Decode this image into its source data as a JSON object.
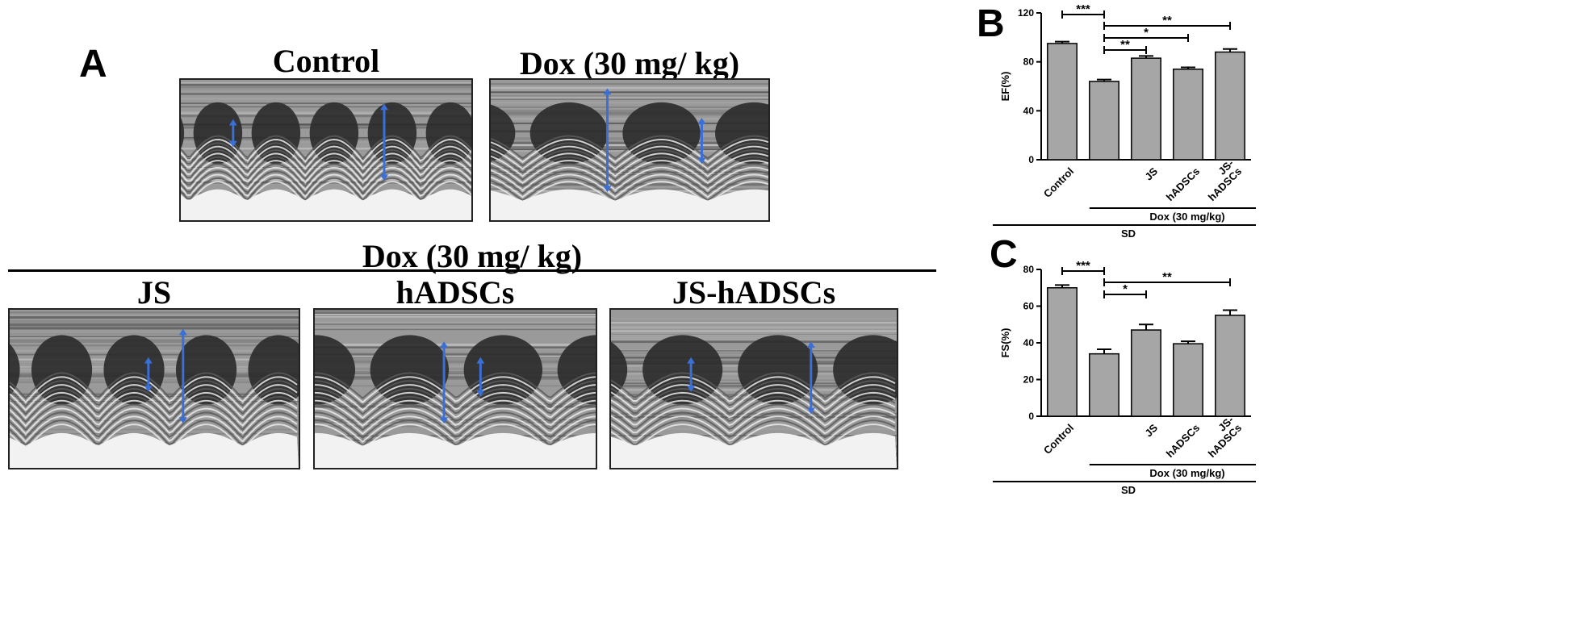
{
  "panelA": {
    "letter": "A",
    "top_titles": [
      "Control",
      "Dox (30 mg/ kg)"
    ],
    "group_title": "Dox (30 mg/ kg)",
    "bottom_titles": [
      "JS",
      "hADSCs",
      "JS-hADSCs"
    ]
  },
  "colors": {
    "arrow": "#3a6fd8",
    "bar": "#a6a6a6"
  },
  "chart_data": [
    {
      "panel": "B",
      "type": "bar",
      "ylabel": "EF(%)",
      "ylim": [
        0,
        120
      ],
      "yticks": [
        0,
        40,
        80,
        120
      ],
      "categories": [
        "Control",
        "",
        "JS",
        "hADSCs",
        "JS-\nhADSCs"
      ],
      "values": [
        95,
        64,
        83,
        74,
        88
      ],
      "errors": [
        1.5,
        1.5,
        1.8,
        1.5,
        2.5
      ],
      "group_label_1": "Dox (30 mg/kg)",
      "group_label_2": "SD",
      "significance": [
        {
          "from": 0,
          "to": 1,
          "label": "***"
        },
        {
          "from": 1,
          "to": 4,
          "label": "**"
        },
        {
          "from": 1,
          "to": 3,
          "label": "*"
        },
        {
          "from": 1,
          "to": 2,
          "label": "**"
        }
      ]
    },
    {
      "panel": "C",
      "type": "bar",
      "ylabel": "FS(%)",
      "ylim": [
        0,
        80
      ],
      "yticks": [
        0,
        20,
        40,
        60,
        80
      ],
      "categories": [
        "Control",
        "",
        "JS",
        "hADSCs",
        "JS-\nhADSCs"
      ],
      "values": [
        70,
        34,
        47,
        39.5,
        55
      ],
      "errors": [
        1.5,
        2.5,
        3.0,
        1.3,
        2.8
      ],
      "group_label_1": "Dox (30 mg/kg)",
      "group_label_2": "SD",
      "significance": [
        {
          "from": 0,
          "to": 1,
          "label": "***"
        },
        {
          "from": 1,
          "to": 4,
          "label": "**"
        },
        {
          "from": 1,
          "to": 2,
          "label": "*"
        }
      ]
    }
  ]
}
